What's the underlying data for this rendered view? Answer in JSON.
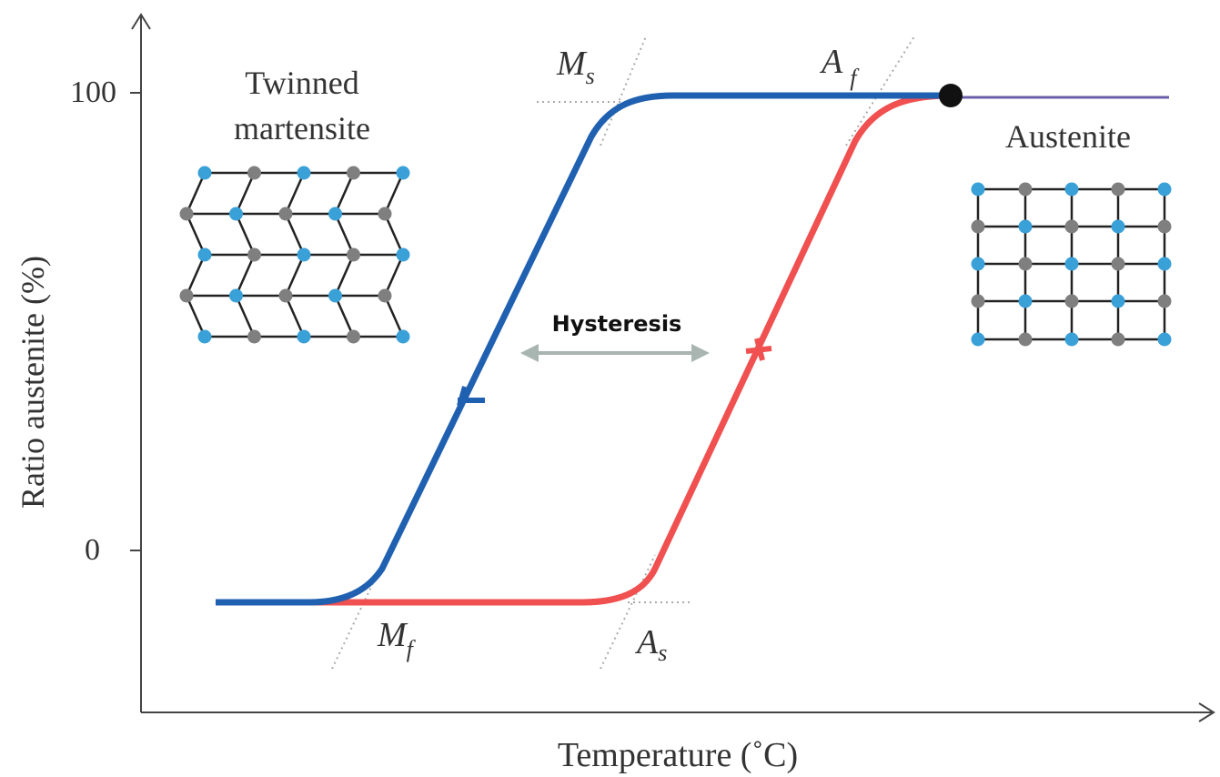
{
  "axes": {
    "y_label": "Ratio austenite (%)",
    "x_label": "Temperature (˚C)",
    "y_ticks": [
      "100",
      "0"
    ]
  },
  "labels": {
    "twinned_martensite": [
      "Twinned",
      "martensite"
    ],
    "austenite": "Austenite",
    "hysteresis": "Hysteresis"
  },
  "points": [
    {
      "letter": "M",
      "subscript": "s"
    },
    {
      "letter": "A",
      "subscript": "f"
    },
    {
      "letter": "M",
      "subscript": "f"
    },
    {
      "letter": "A",
      "subscript": "s"
    }
  ]
}
